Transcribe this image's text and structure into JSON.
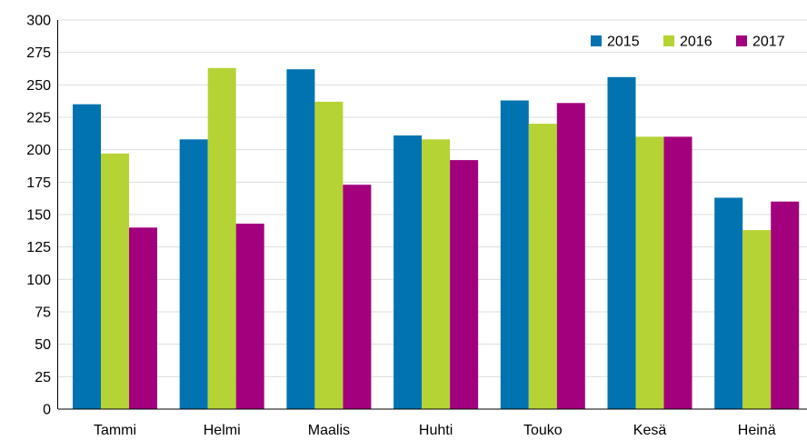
{
  "chart_data": {
    "type": "bar",
    "categories": [
      "Tammi",
      "Helmi",
      "Maalis",
      "Huhti",
      "Touko",
      "Kesä",
      "Heinä"
    ],
    "series": [
      {
        "name": "2015",
        "color": "#0073b0",
        "values": [
          235,
          208,
          262,
          211,
          238,
          256,
          163
        ]
      },
      {
        "name": "2016",
        "color": "#b5d334",
        "values": [
          197,
          263,
          237,
          208,
          220,
          210,
          138
        ]
      },
      {
        "name": "2017",
        "color": "#a3007e",
        "values": [
          140,
          143,
          173,
          192,
          236,
          210,
          160
        ]
      }
    ],
    "title": "",
    "xlabel": "",
    "ylabel": "",
    "ylim": [
      0,
      300
    ],
    "yticks": [
      0,
      25,
      50,
      75,
      100,
      125,
      150,
      175,
      200,
      225,
      250,
      275,
      300
    ],
    "grid": true,
    "legend_position": "top-right",
    "colors": {
      "grid": "#dddddd",
      "axis": "#000000",
      "text": "#000000"
    }
  }
}
